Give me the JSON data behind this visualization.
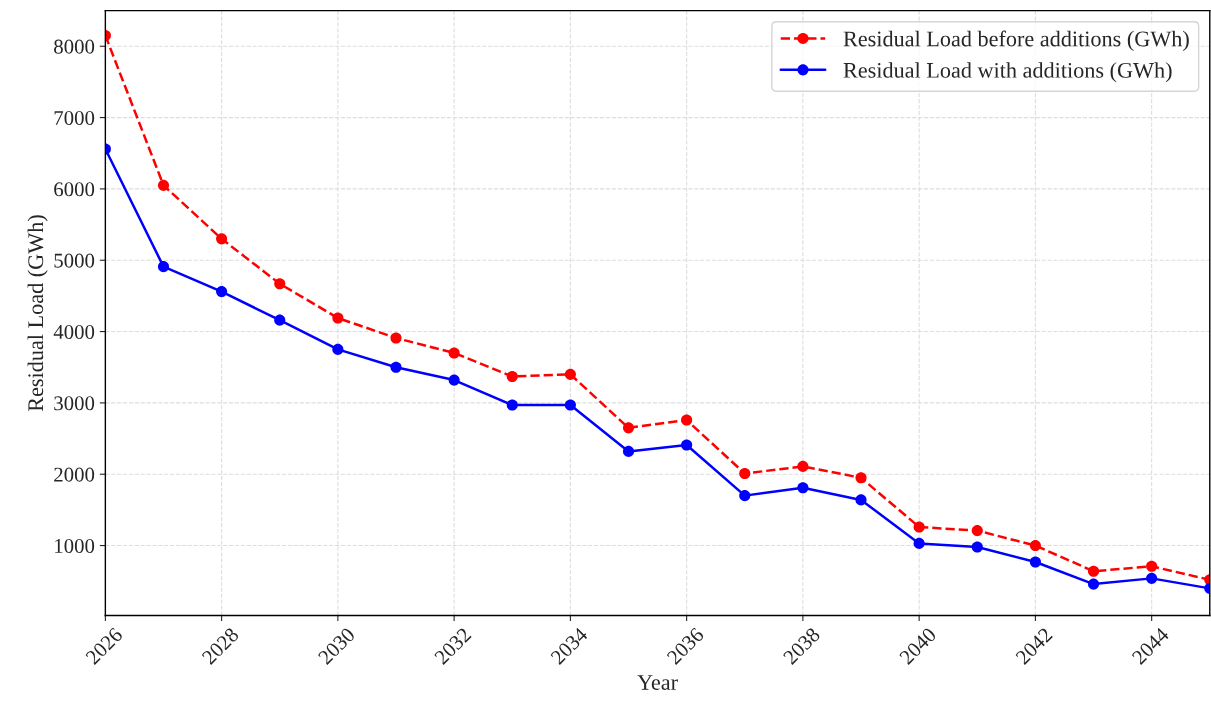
{
  "chart_data": {
    "type": "line",
    "xlabel": "Year",
    "ylabel": "Residual Load (GWh)",
    "x": [
      2026,
      2027,
      2028,
      2029,
      2030,
      2031,
      2032,
      2033,
      2034,
      2035,
      2036,
      2037,
      2038,
      2039,
      2040,
      2041,
      2042,
      2043,
      2044,
      2045
    ],
    "series": [
      {
        "name": "Residual Load before additions (GWh)",
        "color": "#ff0000",
        "line_style": "dashed",
        "marker": "circle",
        "values": [
          8150,
          6050,
          5300,
          4670,
          4190,
          3910,
          3700,
          3370,
          3400,
          2650,
          2760,
          2010,
          2110,
          1950,
          1260,
          1210,
          1000,
          640,
          710,
          520
        ]
      },
      {
        "name": "Residual Load with additions (GWh)",
        "color": "#0000ff",
        "line_style": "solid",
        "marker": "circle",
        "values": [
          6560,
          4910,
          4560,
          4160,
          3750,
          3500,
          3320,
          2970,
          2970,
          2320,
          2410,
          1700,
          1810,
          1640,
          1030,
          980,
          770,
          460,
          540,
          400
        ]
      }
    ],
    "xlim": [
      2026,
      2045
    ],
    "xticks": [
      2026,
      2028,
      2030,
      2032,
      2034,
      2036,
      2038,
      2040,
      2042,
      2044
    ],
    "ylim": [
      20,
      8500
    ],
    "yticks": [
      1000,
      2000,
      3000,
      4000,
      5000,
      6000,
      7000,
      8000
    ],
    "grid": true,
    "legend": "top right"
  }
}
